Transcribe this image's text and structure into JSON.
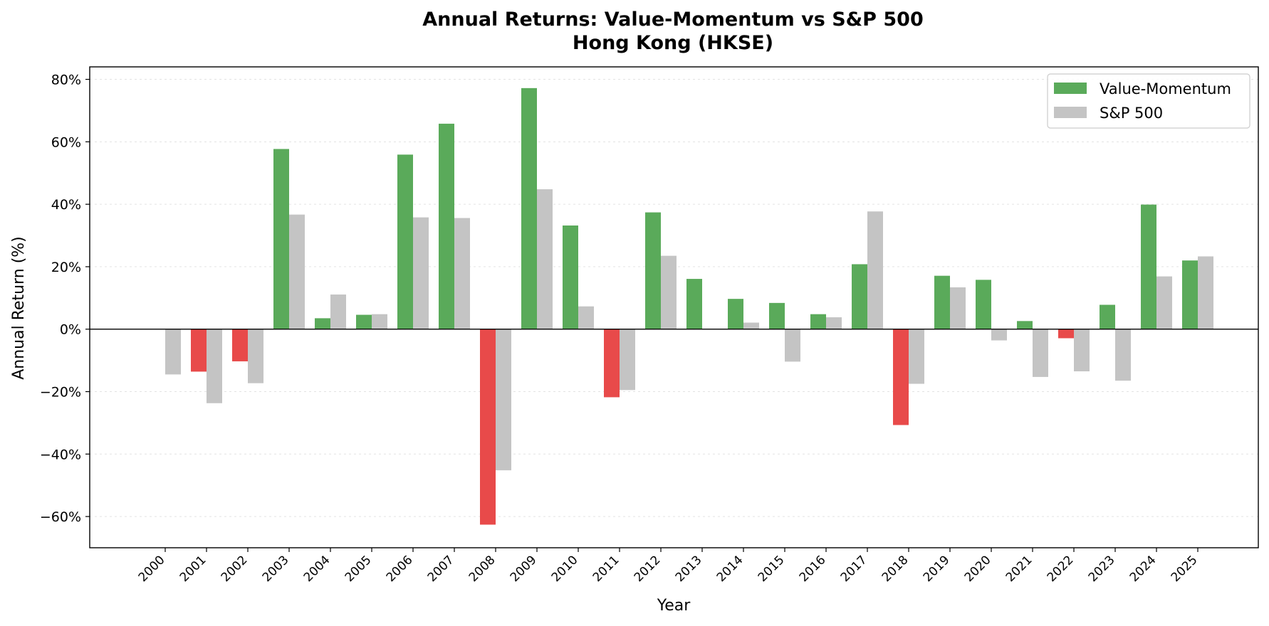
{
  "chart_data": {
    "type": "bar",
    "title": "Annual Returns: Value-Momentum vs S&P 500",
    "subtitle": "Hong Kong (HKSE)",
    "xlabel": "Year",
    "ylabel": "Annual Return (%)",
    "ylim": [
      -70,
      84
    ],
    "yticks": [
      -60,
      -40,
      -20,
      0,
      20,
      40,
      60,
      80
    ],
    "ytick_labels": [
      "−60%",
      "−40%",
      "−20%",
      "0%",
      "20%",
      "40%",
      "60%",
      "80%"
    ],
    "grid": true,
    "legend_position": "top-right",
    "colors": {
      "value_momentum_positive": "#5aaa5a",
      "value_momentum_negative": "#e84a4a",
      "sp500": "#c4c4c4",
      "grid": "#e3e3e3"
    },
    "categories": [
      "2000",
      "2001",
      "2002",
      "2003",
      "2004",
      "2005",
      "2006",
      "2007",
      "2008",
      "2009",
      "2010",
      "2011",
      "2012",
      "2013",
      "2014",
      "2015",
      "2016",
      "2017",
      "2018",
      "2019",
      "2020",
      "2021",
      "2022",
      "2023",
      "2024",
      "2025"
    ],
    "series": [
      {
        "name": "Value-Momentum",
        "values": [
          0,
          -13.6,
          -10.3,
          57.7,
          3.5,
          4.6,
          55.9,
          65.8,
          -62.6,
          77.2,
          33.2,
          -21.8,
          37.4,
          16.1,
          9.7,
          8.4,
          4.8,
          20.8,
          -30.7,
          17.1,
          15.8,
          2.6,
          -2.9,
          7.8,
          39.9,
          22.0
        ]
      },
      {
        "name": "S&P 500",
        "values": [
          -14.5,
          -23.7,
          -17.3,
          36.7,
          11.1,
          4.8,
          35.8,
          35.6,
          -45.2,
          44.8,
          7.3,
          -19.5,
          23.5,
          0,
          2.1,
          -10.4,
          3.8,
          37.7,
          -17.5,
          13.4,
          -3.6,
          -15.3,
          -13.5,
          -16.5,
          16.9,
          23.3
        ]
      }
    ]
  }
}
